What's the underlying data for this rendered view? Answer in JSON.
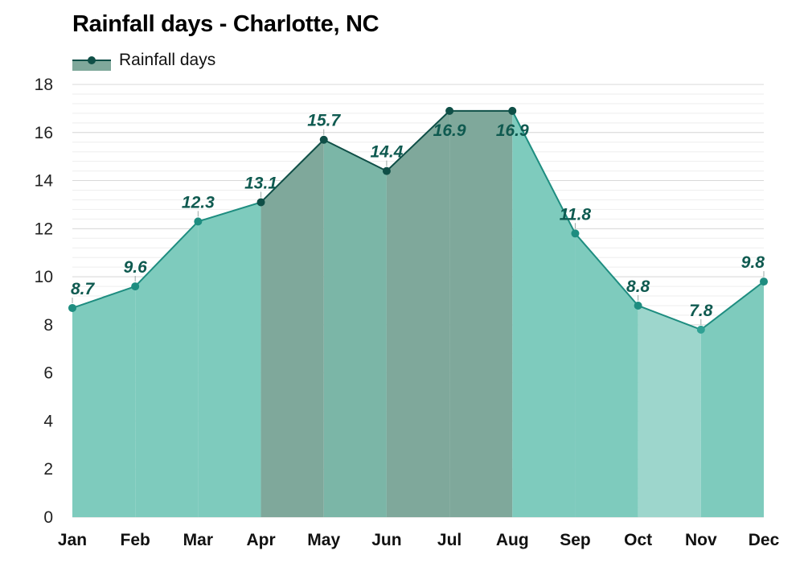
{
  "colors": {
    "area_default": "#7ecbbd",
    "area_dark": "#7fa89b",
    "area_mid": "#7bb6a7",
    "area_light": "#9dd6cc",
    "line_default": "#1e8d80",
    "line_dark": "#0f4f47",
    "point_default": "#1e8d80",
    "point_dark": "#0f4f47",
    "point_light": "#2fa194",
    "data_label": "#0f5a50"
  },
  "chart_data": {
    "type": "area",
    "title": "Rainfall days - Charlotte, NC",
    "categories": [
      "Jan",
      "Feb",
      "Mar",
      "Apr",
      "May",
      "Jun",
      "Jul",
      "Aug",
      "Sep",
      "Oct",
      "Nov",
      "Dec"
    ],
    "series": [
      {
        "name": "Rainfall days",
        "values": [
          8.7,
          9.6,
          12.3,
          13.1,
          15.7,
          14.4,
          16.9,
          16.9,
          11.8,
          8.8,
          7.8,
          9.8
        ]
      }
    ],
    "ylim": [
      0,
      18
    ],
    "yticks": [
      0,
      2,
      4,
      6,
      8,
      10,
      12,
      14,
      16,
      18
    ],
    "grid": true,
    "legend_position": "top-left",
    "data_labels": true,
    "segment_shades": [
      "default",
      "default",
      "default",
      "dark",
      "mid",
      "dark",
      "dark",
      "default",
      "default",
      "light",
      "default"
    ]
  }
}
